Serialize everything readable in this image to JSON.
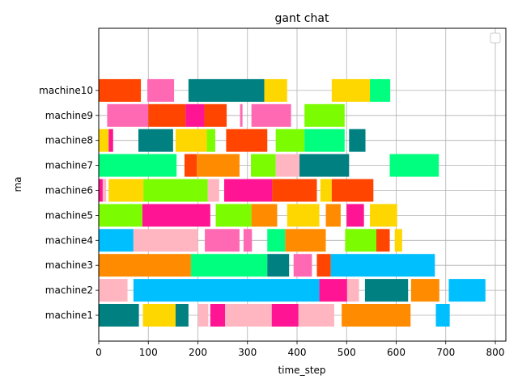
{
  "chart_data": {
    "type": "bar",
    "orientation": "horizontal-gantt",
    "title": "gant chat",
    "xlabel": "time_step",
    "ylabel": "ma",
    "xlim": [
      0,
      820
    ],
    "x_ticks": [
      0,
      100,
      200,
      300,
      400,
      500,
      600,
      700,
      800
    ],
    "categories": [
      "machine1",
      "machine2",
      "machine3",
      "machine4",
      "machine5",
      "machine6",
      "machine7",
      "machine8",
      "machine9",
      "machine10"
    ],
    "grid": true,
    "legend": "top-right (empty)",
    "tasks": {
      "machine1": [
        [
          0,
          81,
          "#008080"
        ],
        [
          89,
          155,
          "#FFD700"
        ],
        [
          155,
          181,
          "#008080"
        ],
        [
          201,
          221,
          "#FFB6C1"
        ],
        [
          225,
          255,
          "#FF1493"
        ],
        [
          255,
          349,
          "#FFB6C1"
        ],
        [
          349,
          403,
          "#FF1493"
        ],
        [
          403,
          475,
          "#FFB6C1"
        ],
        [
          490,
          629,
          "#FF8C00"
        ],
        [
          680,
          708,
          "#00BFFF"
        ]
      ],
      "machine2": [
        [
          0,
          58,
          "#FFB6C1"
        ],
        [
          70,
          445,
          "#00BFFF"
        ],
        [
          445,
          501,
          "#FF1493"
        ],
        [
          501,
          525,
          "#FFB6C1"
        ],
        [
          537,
          624,
          "#008080"
        ],
        [
          630,
          687,
          "#FF8C00"
        ],
        [
          706,
          780,
          "#00BFFF"
        ]
      ],
      "machine3": [
        [
          0,
          186,
          "#FF8C00"
        ],
        [
          186,
          340,
          "#00FF7F"
        ],
        [
          340,
          384,
          "#008080"
        ],
        [
          393,
          430,
          "#FF69B4"
        ],
        [
          440,
          468,
          "#FF4500"
        ],
        [
          468,
          678,
          "#00BFFF"
        ]
      ],
      "machine4": [
        [
          0,
          70,
          "#00BFFF"
        ],
        [
          70,
          200,
          "#FFB6C1"
        ],
        [
          214,
          284,
          "#FF69B4"
        ],
        [
          292,
          309,
          "#FF69B4"
        ],
        [
          340,
          376,
          "#00FF7F"
        ],
        [
          376,
          458,
          "#FF8C00"
        ],
        [
          497,
          560,
          "#7CFC00"
        ],
        [
          560,
          587,
          "#FF4500"
        ],
        [
          597,
          612,
          "#FFD700"
        ]
      ],
      "machine5": [
        [
          0,
          88,
          "#7CFC00"
        ],
        [
          88,
          225,
          "#FF1493"
        ],
        [
          236,
          308,
          "#7CFC00"
        ],
        [
          308,
          360,
          "#FF8C00"
        ],
        [
          380,
          445,
          "#FFD700"
        ],
        [
          458,
          488,
          "#FF8C00"
        ],
        [
          500,
          535,
          "#FF1493"
        ],
        [
          547,
          602,
          "#FFD700"
        ]
      ],
      "machine6": [
        [
          0,
          8,
          "#FF1493"
        ],
        [
          8,
          15,
          "#FFB6C1"
        ],
        [
          20,
          90,
          "#FFD700"
        ],
        [
          90,
          220,
          "#7CFC00"
        ],
        [
          220,
          243,
          "#FFB6C1"
        ],
        [
          253,
          350,
          "#FF1493"
        ],
        [
          350,
          440,
          "#FF4500"
        ],
        [
          447,
          470,
          "#FFD700"
        ],
        [
          470,
          554,
          "#FF4500"
        ]
      ],
      "machine7": [
        [
          0,
          157,
          "#00FF7F"
        ],
        [
          173,
          198,
          "#FF4500"
        ],
        [
          198,
          284,
          "#FF8C00"
        ],
        [
          307,
          357,
          "#7CFC00"
        ],
        [
          357,
          405,
          "#FFB6C1"
        ],
        [
          405,
          505,
          "#008080"
        ],
        [
          587,
          686,
          "#00FF7F"
        ]
      ],
      "machine8": [
        [
          0,
          20,
          "#FFD700"
        ],
        [
          20,
          29,
          "#FF1493"
        ],
        [
          80,
          150,
          "#008080"
        ],
        [
          155,
          218,
          "#FFD700"
        ],
        [
          218,
          235,
          "#7CFC00"
        ],
        [
          257,
          340,
          "#FF4500"
        ],
        [
          357,
          415,
          "#7CFC00"
        ],
        [
          415,
          496,
          "#00FF7F"
        ],
        [
          505,
          538,
          "#008080"
        ]
      ],
      "machine9": [
        [
          17,
          100,
          "#FF69B4"
        ],
        [
          100,
          175,
          "#FF4500"
        ],
        [
          175,
          213,
          "#FF1493"
        ],
        [
          213,
          258,
          "#FF4500"
        ],
        [
          285,
          290,
          "#FF69B4"
        ],
        [
          308,
          388,
          "#FF69B4"
        ],
        [
          415,
          496,
          "#7CFC00"
        ]
      ],
      "machine10": [
        [
          0,
          85,
          "#FF4500"
        ],
        [
          98,
          152,
          "#FF69B4"
        ],
        [
          181,
          334,
          "#008080"
        ],
        [
          334,
          380,
          "#FFD700"
        ],
        [
          470,
          547,
          "#FFD700"
        ],
        [
          547,
          588,
          "#00FF7F"
        ]
      ]
    }
  }
}
